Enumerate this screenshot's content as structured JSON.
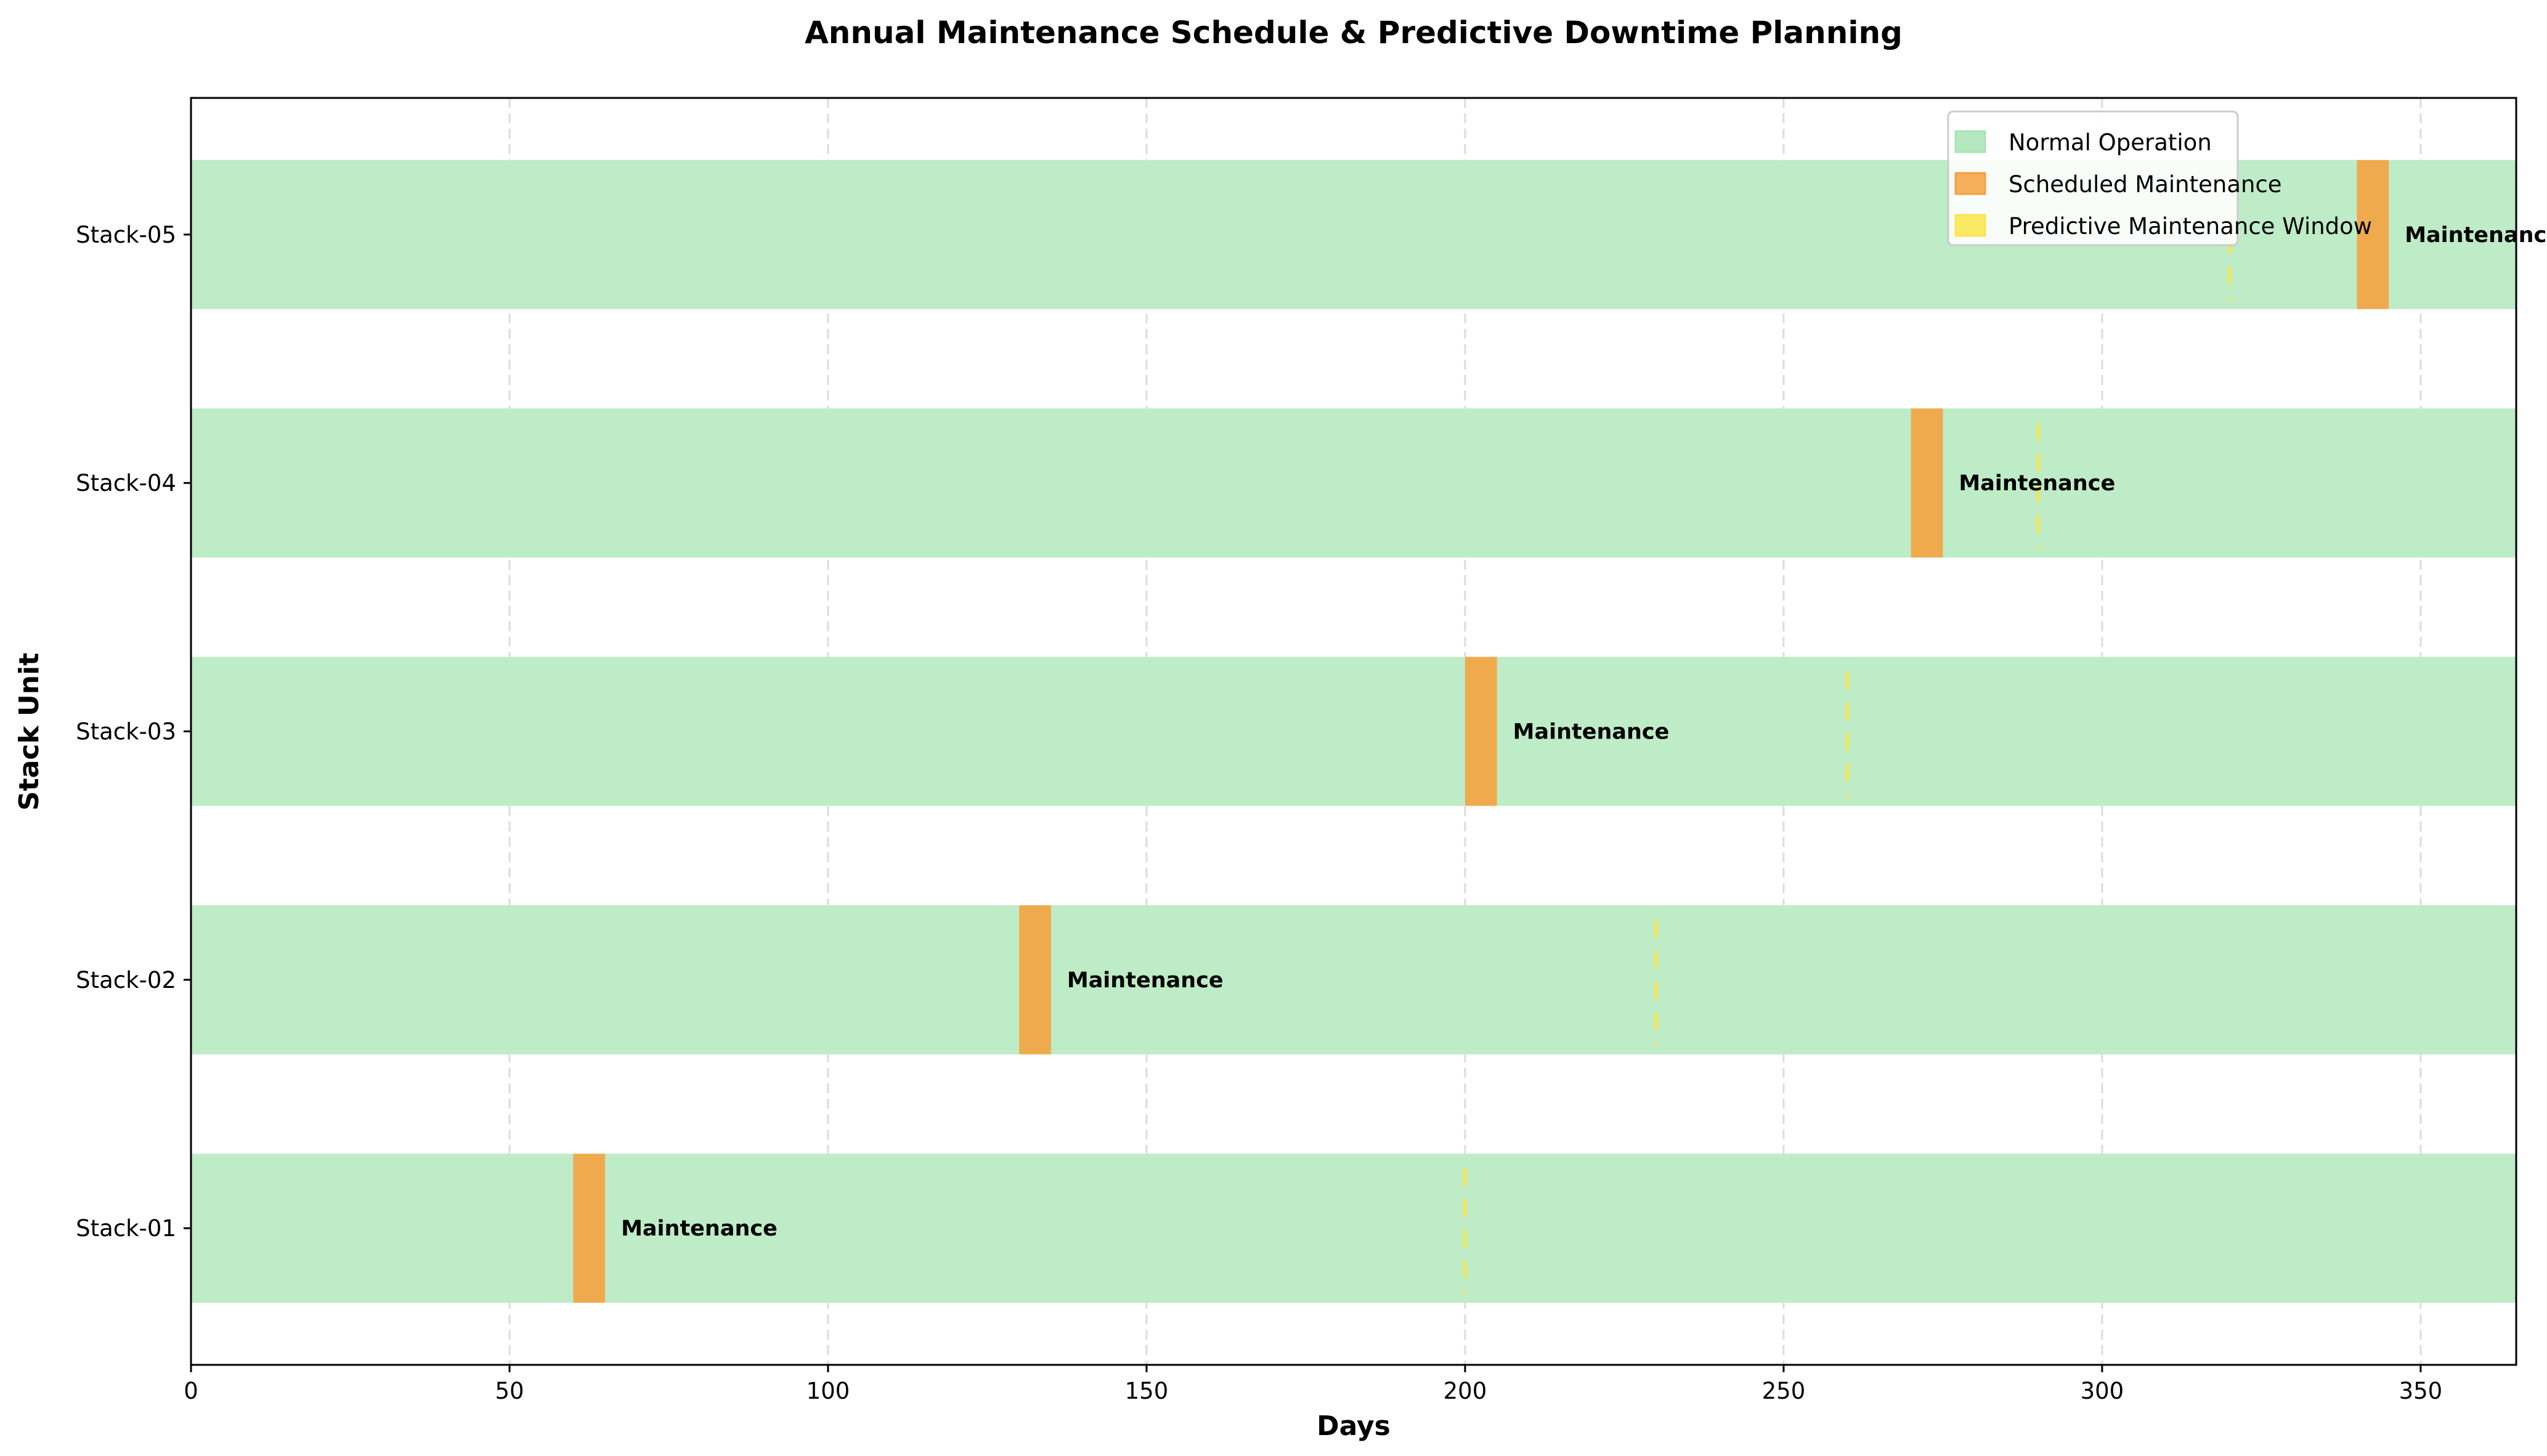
{
  "chart_data": {
    "type": "gantt",
    "title": "Annual Maintenance Schedule & Predictive Downtime Planning",
    "xlabel": "Days",
    "ylabel": "Stack Unit",
    "xlim": [
      0,
      365
    ],
    "ylim": [
      -0.55,
      4.55
    ],
    "xticks": [
      0,
      50,
      100,
      150,
      200,
      250,
      300,
      350
    ],
    "grid": "x dashed",
    "legend_position": "top-right",
    "legend": [
      {
        "label": "Normal Operation",
        "color": "#a8e4b4"
      },
      {
        "label": "Scheduled Maintenance",
        "color": "#f5a040"
      },
      {
        "label": "Predictive Maintenance Window",
        "color": "#f9e54a"
      }
    ],
    "colors": {
      "normal": "#bdecc7",
      "maintenance": "#f0aa4e",
      "predictive": "#efe55e"
    },
    "annotation_label": "Maintenance",
    "units": [
      {
        "name": "Stack-01",
        "normal": [
          0,
          365
        ],
        "maintenance_start": 60,
        "maintenance_duration": 5,
        "predictive_day": 200
      },
      {
        "name": "Stack-02",
        "normal": [
          0,
          365
        ],
        "maintenance_start": 130,
        "maintenance_duration": 5,
        "predictive_day": 230
      },
      {
        "name": "Stack-03",
        "normal": [
          0,
          365
        ],
        "maintenance_start": 200,
        "maintenance_duration": 5,
        "predictive_day": 260
      },
      {
        "name": "Stack-04",
        "normal": [
          0,
          365
        ],
        "maintenance_start": 270,
        "maintenance_duration": 5,
        "predictive_day": 290
      },
      {
        "name": "Stack-05",
        "normal": [
          0,
          365
        ],
        "maintenance_start": 340,
        "maintenance_duration": 5,
        "predictive_day": 320
      }
    ]
  }
}
